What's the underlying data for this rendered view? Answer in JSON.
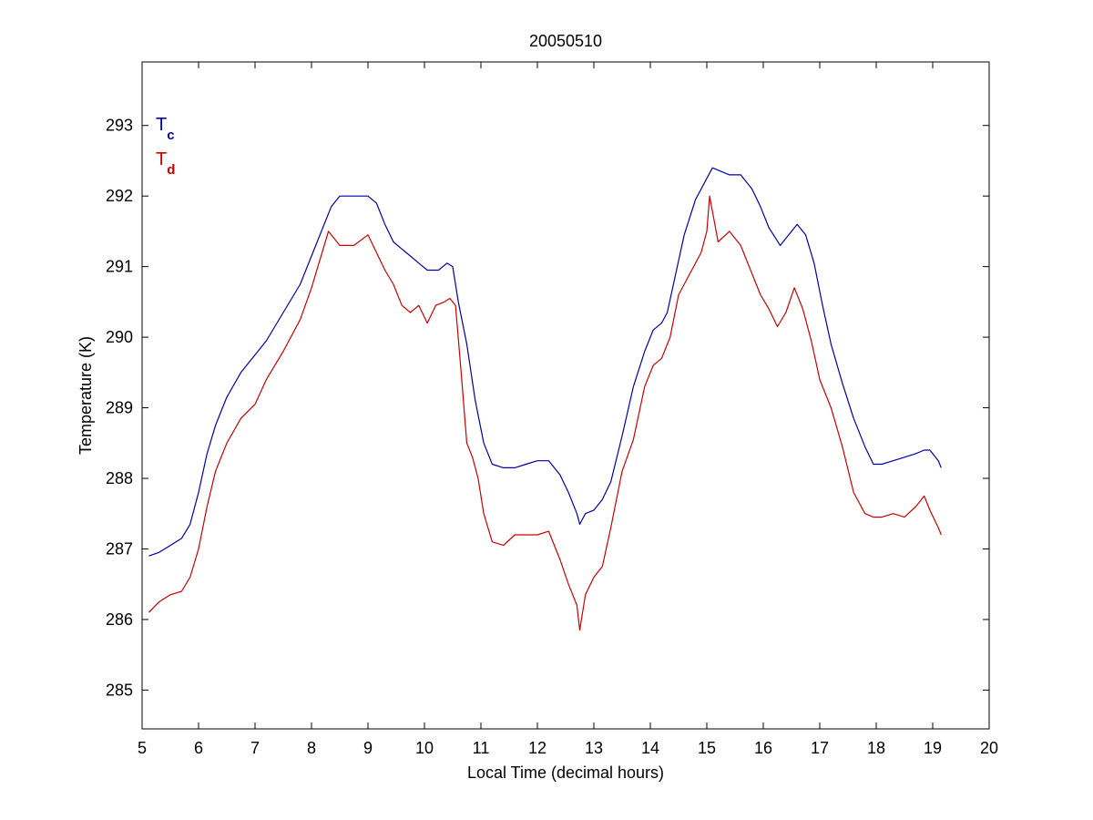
{
  "chart_data": {
    "type": "line",
    "title": "20050510",
    "xlabel": "Local Time (decimal hours)",
    "ylabel": "Temperature (K)",
    "xlim": [
      5,
      20
    ],
    "ylim": [
      284.45,
      293.9
    ],
    "xticks": [
      5,
      6,
      7,
      8,
      9,
      10,
      11,
      12,
      13,
      14,
      15,
      16,
      17,
      18,
      19,
      20
    ],
    "yticks": [
      285,
      286,
      287,
      288,
      289,
      290,
      291,
      292,
      293
    ],
    "grid": false,
    "legend_position": "top-left",
    "series": [
      {
        "name_main": "T",
        "name_sub": "c",
        "color": "#0000aa",
        "x": [
          5.12,
          5.3,
          5.5,
          5.7,
          5.85,
          6.0,
          6.15,
          6.3,
          6.5,
          6.75,
          7.0,
          7.2,
          7.5,
          7.8,
          8.0,
          8.2,
          8.35,
          8.5,
          8.75,
          9.0,
          9.15,
          9.3,
          9.45,
          9.6,
          9.75,
          9.9,
          10.05,
          10.25,
          10.4,
          10.5,
          10.6,
          10.75,
          10.9,
          11.05,
          11.2,
          11.4,
          11.6,
          11.8,
          12.0,
          12.2,
          12.4,
          12.55,
          12.7,
          12.75,
          12.85,
          13.0,
          13.15,
          13.3,
          13.5,
          13.7,
          13.9,
          14.05,
          14.2,
          14.3,
          14.45,
          14.6,
          14.8,
          15.0,
          15.1,
          15.25,
          15.4,
          15.6,
          15.8,
          15.95,
          16.1,
          16.3,
          16.45,
          16.6,
          16.75,
          16.9,
          17.05,
          17.2,
          17.4,
          17.6,
          17.8,
          17.95,
          18.1,
          18.3,
          18.5,
          18.7,
          18.85,
          18.95,
          19.1,
          19.15
        ],
        "y": [
          286.9,
          286.95,
          287.05,
          287.15,
          287.35,
          287.8,
          288.35,
          288.75,
          289.15,
          289.5,
          289.75,
          289.95,
          290.35,
          290.75,
          291.15,
          291.55,
          291.85,
          292.0,
          292.0,
          292.0,
          291.9,
          291.6,
          291.35,
          291.25,
          291.15,
          291.05,
          290.95,
          290.95,
          291.05,
          291.0,
          290.5,
          289.9,
          289.1,
          288.5,
          288.2,
          288.15,
          288.15,
          288.2,
          288.25,
          288.25,
          288.05,
          287.8,
          287.5,
          287.35,
          287.5,
          287.55,
          287.7,
          287.95,
          288.6,
          289.3,
          289.8,
          290.1,
          290.2,
          290.35,
          290.9,
          291.45,
          291.95,
          292.25,
          292.4,
          292.35,
          292.3,
          292.3,
          292.1,
          291.85,
          291.55,
          291.3,
          291.45,
          291.6,
          291.45,
          291.05,
          290.45,
          289.9,
          289.35,
          288.85,
          288.45,
          288.2,
          288.2,
          288.25,
          288.3,
          288.35,
          288.4,
          288.4,
          288.25,
          288.15
        ]
      },
      {
        "name_main": "T",
        "name_sub": "d",
        "color": "#cc0000",
        "x": [
          5.12,
          5.3,
          5.5,
          5.7,
          5.85,
          6.0,
          6.15,
          6.3,
          6.5,
          6.75,
          7.0,
          7.2,
          7.5,
          7.8,
          8.0,
          8.15,
          8.3,
          8.5,
          8.75,
          9.0,
          9.15,
          9.3,
          9.45,
          9.6,
          9.75,
          9.9,
          10.05,
          10.2,
          10.35,
          10.45,
          10.55,
          10.65,
          10.75,
          10.85,
          10.95,
          11.05,
          11.2,
          11.4,
          11.6,
          11.8,
          12.0,
          12.2,
          12.4,
          12.55,
          12.7,
          12.75,
          12.85,
          13.0,
          13.15,
          13.3,
          13.5,
          13.7,
          13.9,
          14.05,
          14.2,
          14.35,
          14.5,
          14.7,
          14.9,
          15.0,
          15.05,
          15.2,
          15.4,
          15.6,
          15.8,
          15.95,
          16.1,
          16.25,
          16.4,
          16.55,
          16.7,
          16.85,
          17.0,
          17.2,
          17.4,
          17.6,
          17.8,
          17.95,
          18.1,
          18.3,
          18.5,
          18.7,
          18.85,
          18.95,
          19.1,
          19.15
        ],
        "y": [
          286.1,
          286.25,
          286.35,
          286.4,
          286.6,
          287.0,
          287.6,
          288.1,
          288.5,
          288.85,
          289.05,
          289.4,
          289.8,
          290.25,
          290.7,
          291.1,
          291.5,
          291.3,
          291.3,
          291.45,
          291.2,
          290.95,
          290.75,
          290.45,
          290.35,
          290.45,
          290.2,
          290.45,
          290.5,
          290.55,
          290.45,
          289.5,
          288.5,
          288.3,
          288.0,
          287.5,
          287.1,
          287.05,
          287.2,
          287.2,
          287.2,
          287.25,
          286.85,
          286.5,
          286.2,
          285.85,
          286.35,
          286.6,
          286.75,
          287.3,
          288.1,
          288.55,
          289.3,
          289.6,
          289.7,
          290.0,
          290.6,
          290.9,
          291.2,
          291.5,
          292.0,
          291.35,
          291.5,
          291.3,
          290.9,
          290.6,
          290.4,
          290.15,
          290.35,
          290.7,
          290.4,
          289.95,
          289.4,
          289.0,
          288.45,
          287.8,
          287.5,
          287.45,
          287.45,
          287.5,
          287.45,
          287.6,
          287.75,
          287.55,
          287.3,
          287.2
        ]
      }
    ]
  }
}
